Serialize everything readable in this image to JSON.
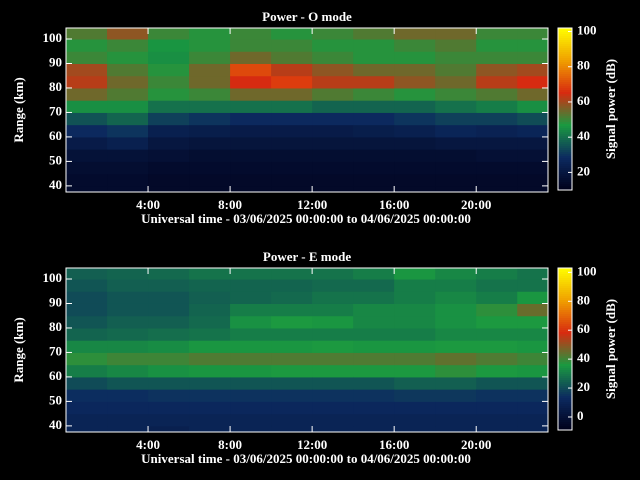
{
  "chart_data": [
    {
      "type": "heatmap",
      "title": "Power - O mode",
      "xlabel": "Universal time - 03/06/2025 00:00:00 to 04/06/2025 00:00:00",
      "ylabel": "Range (km)",
      "colorbar_label": "Signal power (dB)",
      "xlim": [
        0,
        23.5
      ],
      "ylim": [
        37.5,
        104.5
      ],
      "xticks": [
        {
          "value": 4,
          "label": "4:00"
        },
        {
          "value": 8,
          "label": "8:00"
        },
        {
          "value": 12,
          "label": "12:00"
        },
        {
          "value": 16,
          "label": "16:00"
        },
        {
          "value": 20,
          "label": "20:00"
        }
      ],
      "yticks": [
        40,
        50,
        60,
        70,
        80,
        90,
        100
      ],
      "clim": [
        10,
        102
      ],
      "cticks": [
        20,
        40,
        60,
        80,
        100
      ],
      "colormap": [
        "#00001a",
        "#0c2a60",
        "#1a9a40",
        "#d82a10",
        "#f0a000",
        "#ffff00"
      ],
      "x_bins": [
        0,
        2,
        4,
        6,
        8,
        10,
        12,
        14,
        16,
        18,
        20,
        22,
        24
      ],
      "y_bins": [
        35,
        40,
        45,
        50,
        55,
        60,
        65,
        70,
        75,
        80,
        85,
        90,
        95,
        100,
        105
      ],
      "z": [
        [
          15,
          15,
          16,
          18,
          22,
          28,
          35,
          45,
          55,
          62,
          60,
          50,
          48,
          52
        ],
        [
          15,
          15,
          16,
          18,
          24,
          30,
          38,
          45,
          52,
          55,
          52,
          48,
          50,
          58
        ],
        [
          14,
          14,
          15,
          17,
          20,
          24,
          32,
          40,
          48,
          50,
          48,
          45,
          46,
          50
        ],
        [
          14,
          14,
          15,
          16,
          19,
          23,
          30,
          40,
          50,
          55,
          55,
          50,
          48,
          48
        ],
        [
          14,
          14,
          15,
          16,
          19,
          22,
          28,
          40,
          55,
          65,
          70,
          55,
          50,
          50
        ],
        [
          14,
          14,
          15,
          16,
          19,
          22,
          28,
          40,
          55,
          68,
          62,
          52,
          50,
          48
        ],
        [
          14,
          14,
          15,
          16,
          19,
          22,
          28,
          38,
          52,
          62,
          58,
          50,
          48,
          50
        ],
        [
          14,
          14,
          15,
          16,
          19,
          23,
          28,
          38,
          50,
          62,
          55,
          48,
          48,
          52
        ],
        [
          14,
          14,
          15,
          16,
          19,
          24,
          30,
          38,
          48,
          58,
          55,
          48,
          50,
          55
        ],
        [
          14,
          14,
          15,
          16,
          20,
          26,
          32,
          40,
          50,
          55,
          52,
          50,
          52,
          55
        ],
        [
          14,
          14,
          15,
          17,
          20,
          25,
          32,
          42,
          52,
          62,
          58,
          50,
          48,
          50
        ],
        [
          14,
          14,
          15,
          17,
          20,
          26,
          34,
          45,
          55,
          65,
          60,
          50,
          48,
          50
        ]
      ]
    },
    {
      "type": "heatmap",
      "title": "Power - E mode",
      "xlabel": "Universal time - 03/06/2025 00:00:00 to 04/06/2025 00:00:00",
      "ylabel": "Range (km)",
      "colorbar_label": "Signal power (dB)",
      "xlim": [
        0,
        23.5
      ],
      "ylim": [
        37.5,
        104.5
      ],
      "xticks": [
        {
          "value": 4,
          "label": "4:00"
        },
        {
          "value": 8,
          "label": "8:00"
        },
        {
          "value": 12,
          "label": "12:00"
        },
        {
          "value": 16,
          "label": "16:00"
        },
        {
          "value": 20,
          "label": "20:00"
        }
      ],
      "yticks": [
        40,
        50,
        60,
        70,
        80,
        90,
        100
      ],
      "clim": [
        -9,
        103
      ],
      "cticks": [
        0,
        20,
        40,
        60,
        80,
        100
      ],
      "colormap": [
        "#00001a",
        "#0c2a60",
        "#1a9a40",
        "#d82a10",
        "#f0a000",
        "#ffff00"
      ],
      "x_bins": [
        0,
        2,
        4,
        6,
        8,
        10,
        12,
        14,
        16,
        18,
        20,
        22,
        24
      ],
      "y_bins": [
        35,
        40,
        45,
        50,
        55,
        60,
        65,
        70,
        75,
        80,
        85,
        90,
        95,
        100,
        105
      ],
      "z": [
        [
          10,
          10,
          12,
          14,
          20,
          30,
          38,
          32,
          25,
          22,
          20,
          20,
          22,
          24
        ],
        [
          10,
          10,
          12,
          14,
          22,
          32,
          40,
          32,
          26,
          24,
          22,
          22,
          24,
          25
        ],
        [
          8,
          10,
          12,
          15,
          22,
          34,
          40,
          33,
          27,
          24,
          22,
          22,
          24,
          26
        ],
        [
          10,
          10,
          12,
          15,
          22,
          35,
          42,
          35,
          28,
          26,
          25,
          24,
          25,
          28
        ],
        [
          10,
          10,
          12,
          15,
          22,
          35,
          42,
          35,
          30,
          34,
          30,
          25,
          25,
          28
        ],
        [
          10,
          10,
          12,
          15,
          22,
          36,
          42,
          35,
          30,
          36,
          30,
          26,
          25,
          28
        ],
        [
          10,
          10,
          12,
          15,
          22,
          36,
          42,
          36,
          30,
          35,
          30,
          28,
          26,
          28
        ],
        [
          10,
          10,
          12,
          15,
          22,
          36,
          42,
          35,
          30,
          32,
          32,
          28,
          26,
          30
        ],
        [
          10,
          10,
          12,
          16,
          24,
          36,
          42,
          35,
          30,
          32,
          32,
          30,
          30,
          35
        ],
        [
          10,
          10,
          12,
          16,
          24,
          38,
          44,
          36,
          32,
          34,
          34,
          32,
          30,
          32
        ],
        [
          10,
          10,
          12,
          15,
          22,
          36,
          42,
          36,
          32,
          36,
          38,
          30,
          28,
          30
        ],
        [
          10,
          10,
          12,
          15,
          22,
          35,
          40,
          35,
          32,
          36,
          45,
          35,
          28,
          28
        ]
      ]
    }
  ]
}
